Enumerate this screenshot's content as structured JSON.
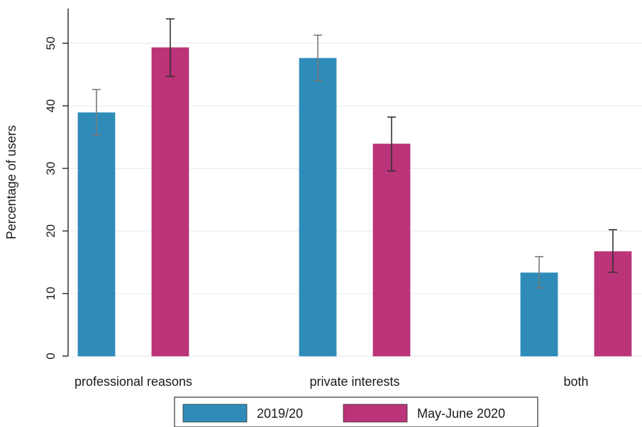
{
  "chart_data": {
    "type": "bar",
    "categories": [
      "professional reasons",
      "private interests",
      "both"
    ],
    "series": [
      {
        "name": "2019/20",
        "values": [
          38.9,
          47.6,
          13.3
        ],
        "err_low": [
          35.3,
          44.0,
          10.9
        ],
        "err_high": [
          42.6,
          51.3,
          15.9
        ],
        "color": "#2f8cb9",
        "err_color": "#7a7a7a"
      },
      {
        "name": "May-June 2020",
        "values": [
          49.3,
          33.9,
          16.7
        ],
        "err_low": [
          44.7,
          29.6,
          13.4
        ],
        "err_high": [
          53.9,
          38.2,
          20.2
        ],
        "color": "#bb3379",
        "err_color": "#333333"
      }
    ],
    "title": "",
    "xlabel": "",
    "ylabel": "Percentage of users",
    "ylim": [
      0,
      55
    ],
    "yticks": [
      0,
      10,
      20,
      30,
      40,
      50
    ],
    "grid": true,
    "legend_position": "bottom"
  }
}
